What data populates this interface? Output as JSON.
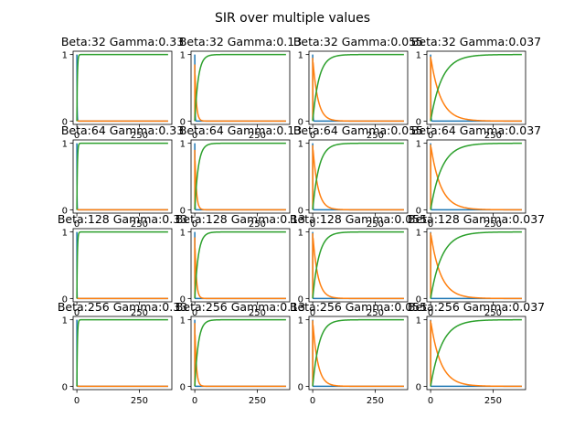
{
  "figure": {
    "suptitle": "SIR over multiple values"
  },
  "colors": {
    "S": "#1f77b4",
    "I": "#ff7f0e",
    "R": "#2ca02c",
    "axis": "#000000",
    "background": "#ffffff"
  },
  "chart_data": {
    "type": "line",
    "layout": "4x4 grid of subplots",
    "xlim": [
      -15,
      380
    ],
    "ylim": [
      -0.05,
      1.05
    ],
    "x_ticks": [
      0,
      250
    ],
    "y_ticks": [
      0,
      1
    ],
    "x_tick_labels": [
      "0",
      "250"
    ],
    "y_tick_labels": [
      "0",
      "1"
    ],
    "t_max": 365,
    "grid": false,
    "legend": "none",
    "rows": [
      {
        "beta_label": "32",
        "cells": [
          {
            "title": "Beta:32 Gamma:0.33",
            "s_tau": 0.8,
            "i_peak": 0.02,
            "i_tau": 2,
            "r_tau": 2
          },
          {
            "title": "Beta:32 Gamma:0.13",
            "s_tau": 0.8,
            "i_peak": 0.85,
            "i_tau": 6,
            "r_tau": 14
          },
          {
            "title": "Beta:32 Gamma:0.055",
            "s_tau": 0.8,
            "i_peak": 0.95,
            "i_tau": 20,
            "r_tau": 25
          },
          {
            "title": "Beta:32 Gamma:0.037",
            "s_tau": 0.8,
            "i_peak": 0.97,
            "i_tau": 40,
            "r_tau": 45
          }
        ]
      },
      {
        "beta_label": "64",
        "cells": [
          {
            "title": "Beta:64 Gamma:0.33",
            "s_tau": 0.5,
            "i_peak": 0.02,
            "i_tau": 2,
            "r_tau": 2
          },
          {
            "title": "Beta:64 Gamma:0.13",
            "s_tau": 0.5,
            "i_peak": 0.9,
            "i_tau": 6,
            "r_tau": 14
          },
          {
            "title": "Beta:64 Gamma:0.055",
            "s_tau": 0.5,
            "i_peak": 0.97,
            "i_tau": 20,
            "r_tau": 25
          },
          {
            "title": "Beta:64 Gamma:0.037",
            "s_tau": 0.5,
            "i_peak": 0.98,
            "i_tau": 40,
            "r_tau": 45
          }
        ]
      },
      {
        "beta_label": "128",
        "cells": [
          {
            "title": "Beta:128 Gamma:0.33",
            "s_tau": 0.3,
            "i_peak": 0.02,
            "i_tau": 2,
            "r_tau": 2
          },
          {
            "title": "Beta:128 Gamma:0.13",
            "s_tau": 0.3,
            "i_peak": 0.92,
            "i_tau": 6,
            "r_tau": 14
          },
          {
            "title": "Beta:128 Gamma:0.055",
            "s_tau": 0.3,
            "i_peak": 0.98,
            "i_tau": 20,
            "r_tau": 25
          },
          {
            "title": "Beta:128 Gamma:0.037",
            "s_tau": 0.3,
            "i_peak": 0.99,
            "i_tau": 40,
            "r_tau": 45
          }
        ]
      },
      {
        "beta_label": "256",
        "cells": [
          {
            "title": "Beta:256 Gamma:0.33",
            "s_tau": 0.2,
            "i_peak": 0.02,
            "i_tau": 2,
            "r_tau": 2
          },
          {
            "title": "Beta:256 Gamma:0.13",
            "s_tau": 0.2,
            "i_peak": 0.95,
            "i_tau": 6,
            "r_tau": 14
          },
          {
            "title": "Beta:256 Gamma:0.055",
            "s_tau": 0.2,
            "i_peak": 0.99,
            "i_tau": 20,
            "r_tau": 25
          },
          {
            "title": "Beta:256 Gamma:0.037",
            "s_tau": 0.2,
            "i_peak": 0.99,
            "i_tau": 40,
            "r_tau": 45
          }
        ]
      }
    ]
  }
}
